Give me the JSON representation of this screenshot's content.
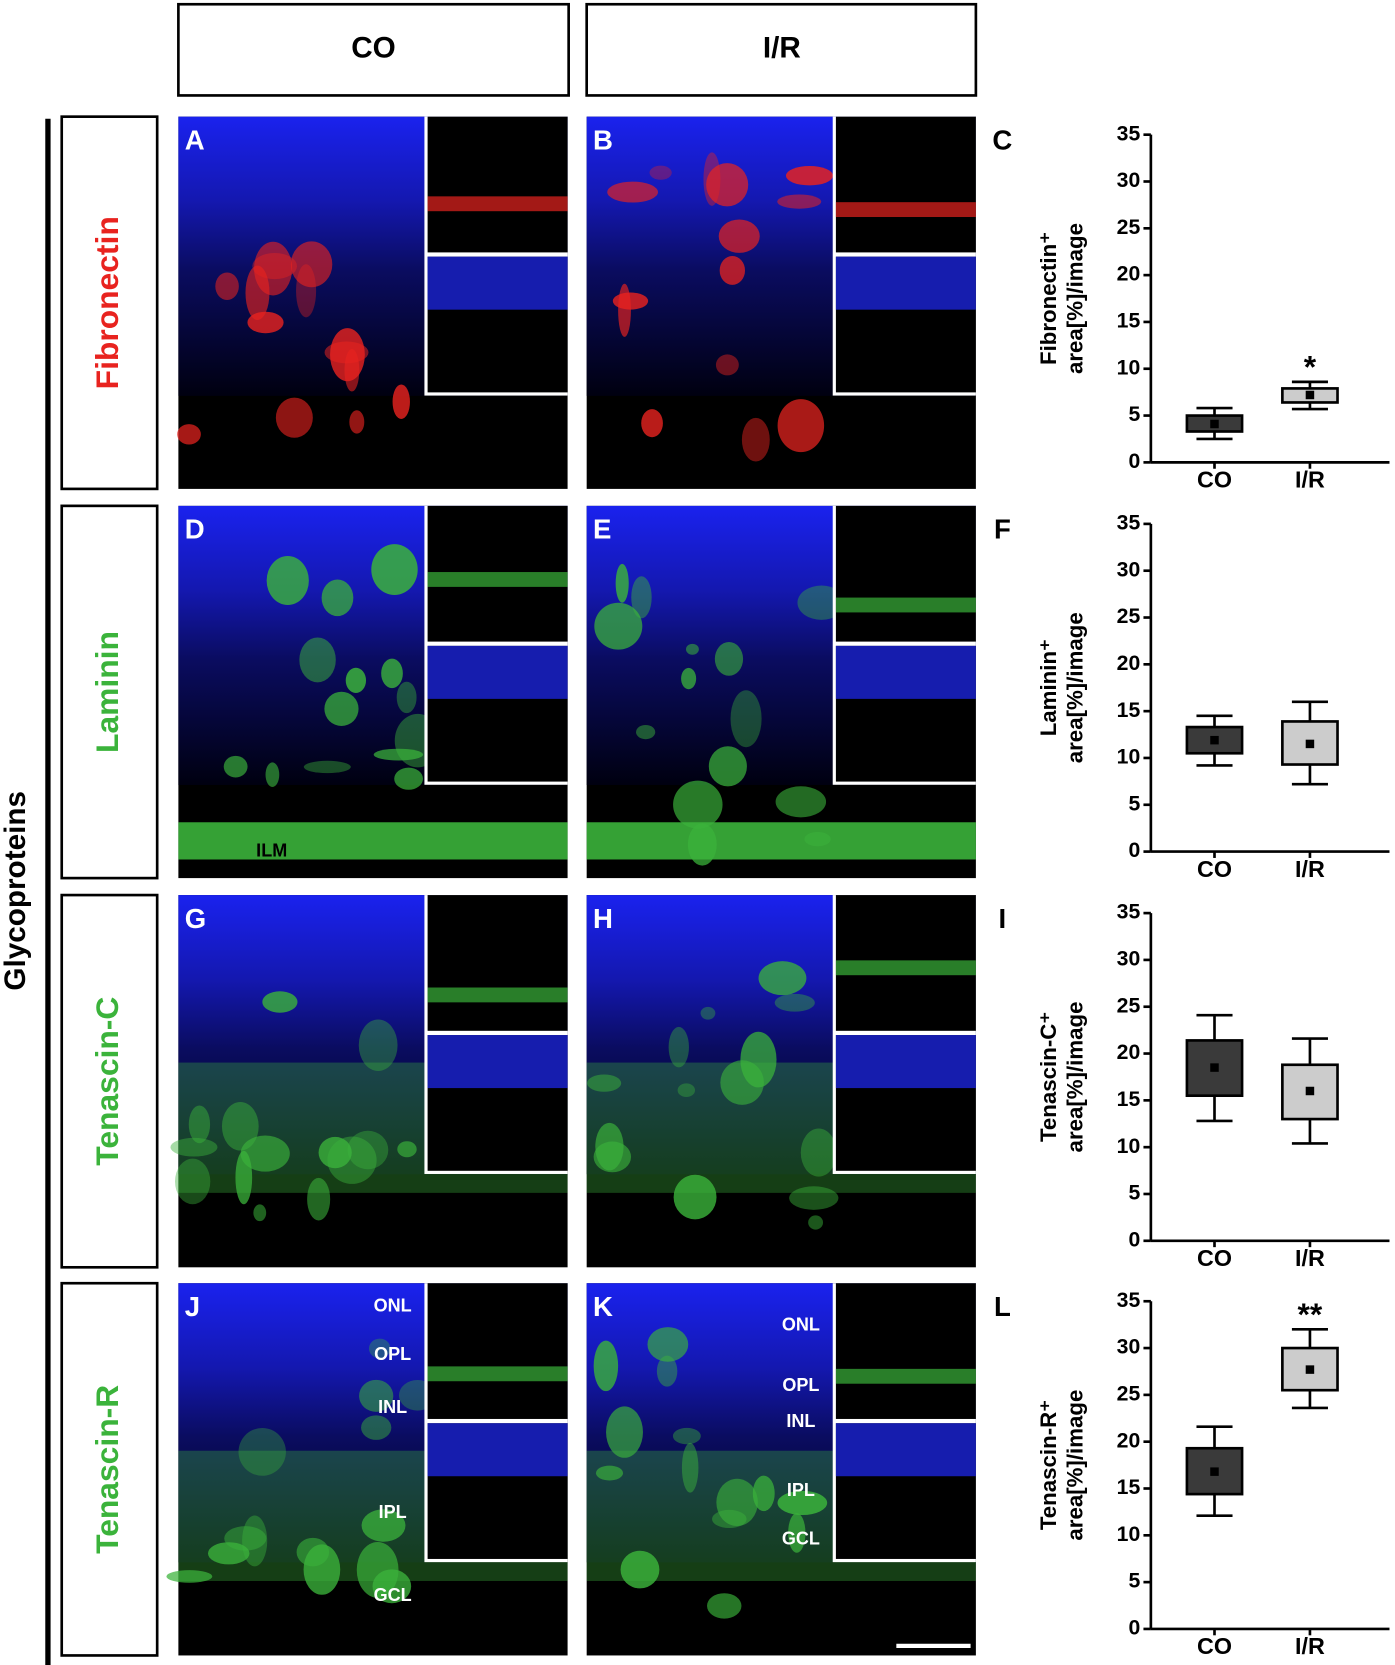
{
  "columns": [
    "CO",
    "I/R"
  ],
  "side_label": "Glycoproteins",
  "rows": [
    {
      "label": "Fibronectin",
      "color": "#e8231f",
      "panels": [
        {
          "letter": "A",
          "annotations": []
        },
        {
          "letter": "B",
          "annotations": []
        }
      ]
    },
    {
      "label": "Laminin",
      "color": "#3bb33b",
      "panels": [
        {
          "letter": "D",
          "annotations": [
            "ILM"
          ]
        },
        {
          "letter": "E",
          "annotations": []
        }
      ]
    },
    {
      "label": "Tenascin-C",
      "color": "#3bb33b",
      "panels": [
        {
          "letter": "G",
          "annotations": []
        },
        {
          "letter": "H",
          "annotations": []
        }
      ]
    },
    {
      "label": "Tenascin-R",
      "color": "#3bb33b",
      "panels": [
        {
          "letter": "J",
          "annotations": [
            "ONL",
            "OPL",
            "INL",
            "IPL",
            "GCL"
          ]
        },
        {
          "letter": "K",
          "annotations": [
            "ONL",
            "OPL",
            "INL",
            "IPL",
            "GCL"
          ]
        }
      ]
    }
  ],
  "chart_data": [
    {
      "type": "box",
      "panel": "C",
      "ylabel": [
        "Fibronectin⁺",
        "area[%]/image"
      ],
      "categories": [
        "CO",
        "I/R"
      ],
      "ylim": [
        0,
        35
      ],
      "yticks": [
        0,
        5,
        10,
        15,
        20,
        25,
        30,
        35
      ],
      "boxes": [
        {
          "low": 2.5,
          "q1": 3.3,
          "q3": 5.0,
          "high": 5.8,
          "mean": 4.1,
          "color": "#3a3a3a"
        },
        {
          "low": 5.7,
          "q1": 6.4,
          "q3": 7.9,
          "high": 8.6,
          "mean": 7.2,
          "color": "#cccccc",
          "annotation": "*"
        }
      ]
    },
    {
      "type": "box",
      "panel": "F",
      "ylabel": [
        "Laminin⁺",
        "area[%]/image"
      ],
      "categories": [
        "CO",
        "I/R"
      ],
      "ylim": [
        0,
        35
      ],
      "yticks": [
        0,
        5,
        10,
        15,
        20,
        25,
        30,
        35
      ],
      "boxes": [
        {
          "low": 9.2,
          "q1": 10.5,
          "q3": 13.3,
          "high": 14.5,
          "mean": 11.9,
          "color": "#3a3a3a"
        },
        {
          "low": 7.2,
          "q1": 9.3,
          "q3": 13.9,
          "high": 16.0,
          "mean": 11.5,
          "color": "#cccccc"
        }
      ]
    },
    {
      "type": "box",
      "panel": "I",
      "ylabel": [
        "Tenascin-C⁺",
        "area[%]/image"
      ],
      "categories": [
        "CO",
        "I/R"
      ],
      "ylim": [
        0,
        35
      ],
      "yticks": [
        0,
        5,
        10,
        15,
        20,
        25,
        30,
        35
      ],
      "boxes": [
        {
          "low": 12.8,
          "q1": 15.5,
          "q3": 21.4,
          "high": 24.1,
          "mean": 18.5,
          "color": "#3a3a3a"
        },
        {
          "low": 10.4,
          "q1": 13.0,
          "q3": 18.8,
          "high": 21.6,
          "mean": 16.0,
          "color": "#cccccc"
        }
      ]
    },
    {
      "type": "box",
      "panel": "L",
      "ylabel": [
        "Tenascin-R⁺",
        "area[%]/image"
      ],
      "categories": [
        "CO",
        "I/R"
      ],
      "ylim": [
        0,
        35
      ],
      "yticks": [
        0,
        5,
        10,
        15,
        20,
        25,
        30,
        35
      ],
      "boxes": [
        {
          "low": 12.1,
          "q1": 14.4,
          "q3": 19.3,
          "high": 21.6,
          "mean": 16.8,
          "color": "#3a3a3a"
        },
        {
          "low": 23.6,
          "q1": 25.5,
          "q3": 30.0,
          "high": 32.0,
          "mean": 27.7,
          "color": "#cccccc",
          "annotation": "**"
        }
      ]
    }
  ]
}
